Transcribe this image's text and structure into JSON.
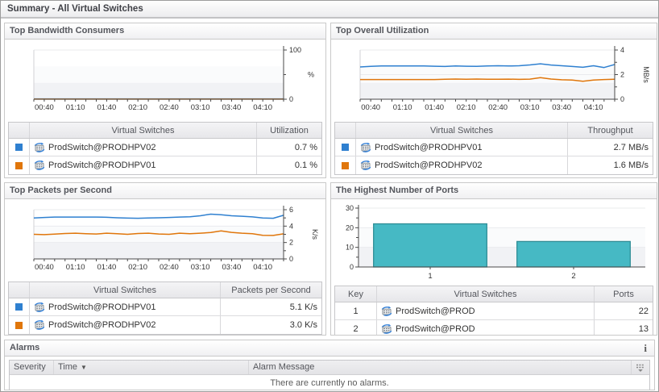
{
  "window": {
    "title": "Summary - All Virtual Switches"
  },
  "colors": {
    "blue": "#2f80d0",
    "orange": "#e0760b",
    "teal": "#46b9c4",
    "teal_border": "#2f8d96"
  },
  "panels": {
    "bandwidth": {
      "title": "Top Bandwidth Consumers",
      "table": {
        "columns": [
          "Virtual Switches",
          "Utilization"
        ],
        "rows": [
          {
            "swatch": "#2f80d0",
            "name": "ProdSwitch@PRODHPV02",
            "value": "0.7 %"
          },
          {
            "swatch": "#e0760b",
            "name": "ProdSwitch@PRODHPV01",
            "value": "0.1 %"
          }
        ]
      }
    },
    "utilization": {
      "title": "Top Overall Utilization",
      "table": {
        "columns": [
          "Virtual Switches",
          "Throughput"
        ],
        "rows": [
          {
            "swatch": "#2f80d0",
            "name": "ProdSwitch@PRODHPV01",
            "value": "2.7 MB/s"
          },
          {
            "swatch": "#e0760b",
            "name": "ProdSwitch@PRODHPV02",
            "value": "1.6 MB/s"
          }
        ]
      }
    },
    "packets": {
      "title": "Top Packets per Second",
      "table": {
        "columns": [
          "Virtual Switches",
          "Packets per Second"
        ],
        "rows": [
          {
            "swatch": "#2f80d0",
            "name": "ProdSwitch@PRODHPV01",
            "value": "5.1 K/s"
          },
          {
            "swatch": "#e0760b",
            "name": "ProdSwitch@PRODHPV02",
            "value": "3.0 K/s"
          }
        ]
      }
    },
    "ports": {
      "title": "The Highest Number of Ports",
      "table": {
        "columns": [
          "Key",
          "Virtual Switches",
          "Ports"
        ],
        "rows": [
          {
            "key": "1",
            "name": "ProdSwitch@PROD",
            "value": "22"
          },
          {
            "key": "2",
            "name": "ProdSwitch@PROD",
            "value": "13"
          }
        ]
      }
    },
    "alarms": {
      "title": "Alarms",
      "info_icon": "i",
      "columns": [
        "Severity",
        "Time",
        "Alarm Message"
      ],
      "sort_arrow": "▼",
      "empty_message": "There are currently no alarms."
    }
  },
  "chart_data": [
    {
      "id": "bandwidth",
      "type": "line",
      "title": "Top Bandwidth Consumers",
      "x_ticks": [
        "00:40",
        "01:10",
        "01:40",
        "02:10",
        "02:40",
        "03:10",
        "03:40",
        "04:10"
      ],
      "ylim": [
        0,
        100
      ],
      "y_major": [
        0,
        100
      ],
      "y_minor": [
        50
      ],
      "unit": "%",
      "unit_rotated": false,
      "legend_position": "table-below",
      "grid": "subtle",
      "series": [
        {
          "name": "ProdSwitch@PRODHPV02",
          "color": "#2f80d0",
          "values": [
            0.7,
            0.7,
            0.7,
            0.7,
            0.7,
            0.7,
            0.7,
            0.7,
            0.7,
            0.7,
            0.7,
            0.7,
            0.7,
            0.7,
            0.7,
            0.7,
            0.7,
            0.7,
            0.7,
            0.7,
            0.7,
            0.7,
            0.7,
            0.7,
            0.7
          ]
        },
        {
          "name": "ProdSwitch@PRODHPV01",
          "color": "#e0760b",
          "values": [
            0.1,
            0.1,
            0.1,
            0.1,
            0.1,
            0.1,
            0.1,
            0.1,
            0.1,
            0.1,
            0.1,
            0.1,
            0.1,
            0.1,
            0.1,
            0.1,
            0.1,
            0.1,
            0.1,
            0.1,
            0.1,
            0.1,
            0.1,
            0.1,
            0.1
          ]
        }
      ]
    },
    {
      "id": "utilization",
      "type": "line",
      "title": "Top Overall Utilization",
      "x_ticks": [
        "00:40",
        "01:10",
        "01:40",
        "02:10",
        "02:40",
        "03:10",
        "03:40",
        "04:10"
      ],
      "ylim": [
        0,
        4
      ],
      "y_major": [
        0,
        2,
        4
      ],
      "y_minor": [
        1,
        3
      ],
      "unit": "MB/s",
      "unit_rotated": true,
      "legend_position": "table-below",
      "grid": "subtle",
      "series": [
        {
          "name": "ProdSwitch@PRODHPV01",
          "color": "#2f80d0",
          "values": [
            2.62,
            2.67,
            2.7,
            2.71,
            2.7,
            2.71,
            2.7,
            2.68,
            2.66,
            2.7,
            2.68,
            2.67,
            2.7,
            2.72,
            2.7,
            2.72,
            2.79,
            2.88,
            2.78,
            2.72,
            2.66,
            2.6,
            2.72,
            2.58,
            2.82
          ]
        },
        {
          "name": "ProdSwitch@PRODHPV02",
          "color": "#e0760b",
          "values": [
            1.6,
            1.6,
            1.6,
            1.6,
            1.6,
            1.6,
            1.6,
            1.6,
            1.62,
            1.64,
            1.62,
            1.64,
            1.62,
            1.62,
            1.63,
            1.61,
            1.63,
            1.76,
            1.64,
            1.58,
            1.56,
            1.46,
            1.56,
            1.6,
            1.62
          ]
        }
      ]
    },
    {
      "id": "packets",
      "type": "line",
      "title": "Top Packets per Second",
      "x_ticks": [
        "00:40",
        "01:10",
        "01:40",
        "02:10",
        "02:40",
        "03:10",
        "03:40",
        "04:10"
      ],
      "ylim": [
        0,
        6
      ],
      "y_major": [
        0,
        2,
        4,
        6
      ],
      "y_minor": [
        1,
        3,
        5
      ],
      "unit": "K/s",
      "unit_rotated": true,
      "legend_position": "table-below",
      "grid": "subtle",
      "series": [
        {
          "name": "ProdSwitch@PRODHPV01",
          "color": "#2f80d0",
          "values": [
            5.0,
            5.06,
            5.1,
            5.1,
            5.1,
            5.1,
            5.1,
            5.08,
            5.02,
            4.98,
            4.96,
            5.0,
            5.02,
            5.06,
            5.1,
            5.14,
            5.26,
            5.46,
            5.38,
            5.26,
            5.2,
            5.12,
            5.0,
            4.96,
            5.32
          ]
        },
        {
          "name": "ProdSwitch@PRODHPV02",
          "color": "#e0760b",
          "values": [
            3.0,
            2.96,
            3.02,
            3.1,
            3.14,
            3.08,
            3.04,
            3.14,
            3.08,
            3.0,
            3.1,
            3.14,
            3.04,
            3.0,
            3.14,
            3.08,
            3.14,
            3.22,
            3.42,
            3.24,
            3.14,
            3.08,
            2.88,
            2.86,
            3.06
          ]
        }
      ]
    },
    {
      "id": "ports",
      "type": "bar",
      "title": "The Highest Number of Ports",
      "categories": [
        "1",
        "2"
      ],
      "values": [
        22,
        13
      ],
      "ylim": [
        0,
        30
      ],
      "y_major": [
        0,
        10,
        20,
        30
      ],
      "y_minor": [
        5,
        15,
        25
      ],
      "bar_color": "#46b9c4",
      "bar_border": "#2f8d96",
      "grid": "subtle"
    }
  ]
}
